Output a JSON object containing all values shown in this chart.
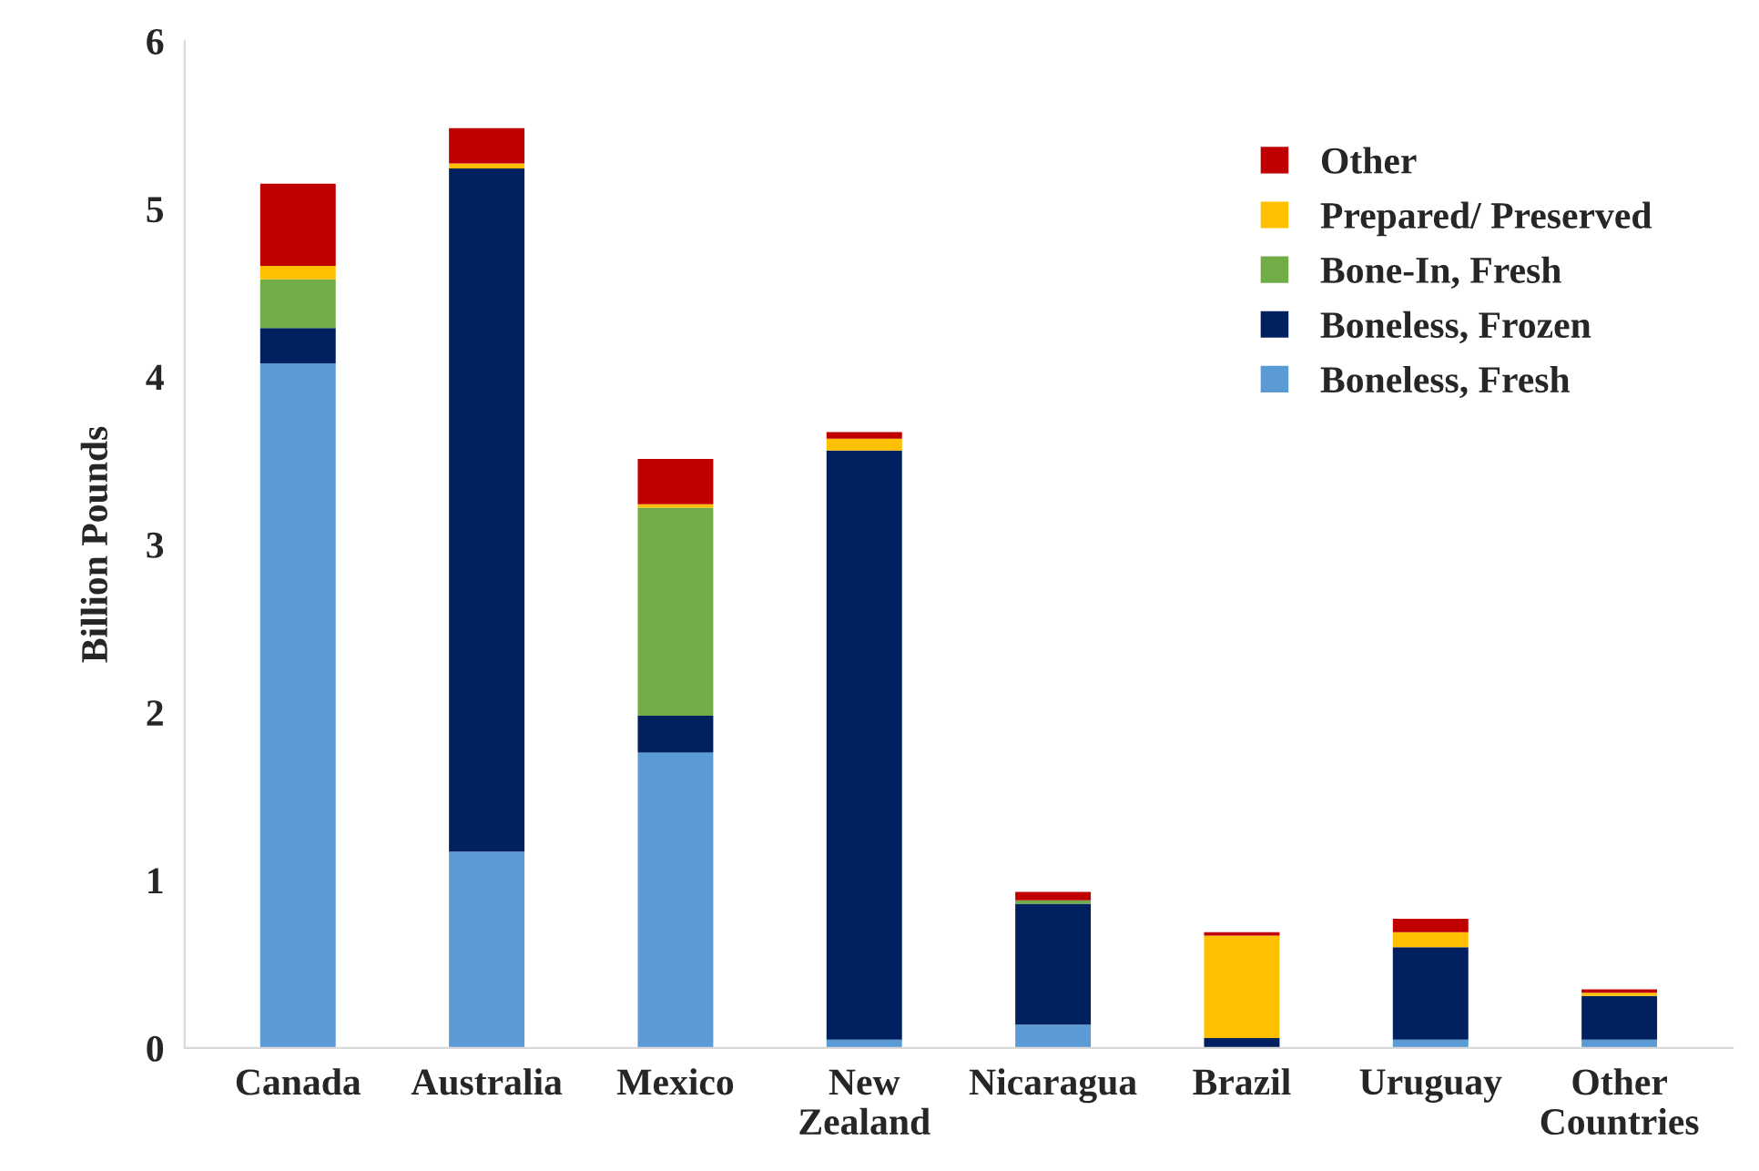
{
  "chart_data": {
    "type": "bar",
    "stacked": true,
    "ylabel": "Billion Pounds",
    "categories": [
      "Canada",
      "Australia",
      "Mexico",
      "New\nZealand",
      "Nicaragua",
      "Brazil",
      "Uruguay",
      "Other\nCountries"
    ],
    "series": [
      {
        "name": "Boneless, Fresh",
        "color": "#5b9bd5",
        "values": [
          4.08,
          1.17,
          1.76,
          0.05,
          0.14,
          0,
          0.05,
          0.05
        ]
      },
      {
        "name": "Boneless, Frozen",
        "color": "#002060",
        "values": [
          0.21,
          4.07,
          0.22,
          3.51,
          0.72,
          0.06,
          0.55,
          0.26
        ]
      },
      {
        "name": "Bone-In, Fresh",
        "color": "#70ad47",
        "values": [
          0.29,
          0,
          1.24,
          0,
          0.02,
          0,
          0,
          0
        ]
      },
      {
        "name": "Prepared/ Preserved",
        "color": "#ffc000",
        "values": [
          0.08,
          0.03,
          0.02,
          0.07,
          0,
          0.61,
          0.09,
          0.02
        ]
      },
      {
        "name": "Other",
        "color": "#c00000",
        "values": [
          0.49,
          0.21,
          0.27,
          0.04,
          0.05,
          0.02,
          0.08,
          0.02
        ]
      }
    ],
    "ylim": [
      0,
      6
    ],
    "yticks": [
      0,
      1,
      2,
      3,
      4,
      5,
      6
    ],
    "grid": false,
    "legend": "top right"
  }
}
